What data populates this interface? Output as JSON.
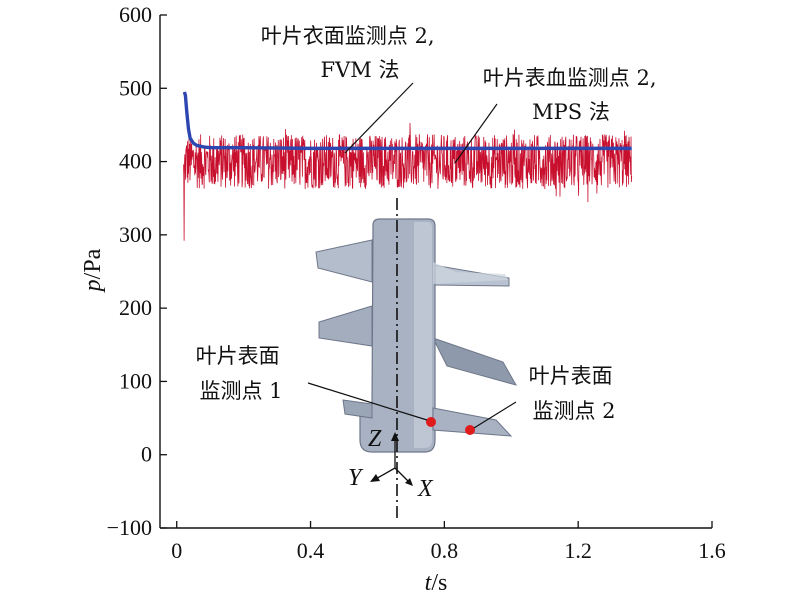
{
  "chart_data": {
    "type": "line",
    "x_axis": {
      "label_italic": "t",
      "label_unit": "/s",
      "range": [
        -0.05,
        1.6
      ],
      "ticks": [
        0,
        0.4,
        0.8,
        1.2,
        1.6
      ],
      "tick_labels": [
        "0",
        "0.4",
        "0.8",
        "1.2",
        "1.6"
      ]
    },
    "y_axis": {
      "label_italic": "p",
      "label_unit": "/Pa",
      "range": [
        -100,
        600
      ],
      "ticks": [
        -100,
        0,
        100,
        200,
        300,
        400,
        500,
        600
      ],
      "tick_labels": [
        "−100",
        "0",
        "100",
        "200",
        "300",
        "400",
        "500",
        "600"
      ]
    },
    "grid": false,
    "series": [
      {
        "color": "#2e47b0",
        "x": [
          0.023,
          0.026,
          0.03,
          0.035,
          0.04,
          0.05,
          0.06,
          0.08,
          0.1,
          0.2,
          0.4,
          0.6,
          0.8,
          1.0,
          1.2,
          1.36
        ],
        "y": [
          495,
          490,
          468,
          445,
          432,
          425,
          422,
          420,
          419,
          419,
          418,
          418,
          418,
          418,
          418,
          418
        ]
      },
      {
        "color": "#c8102e",
        "x_range": [
          0.02,
          1.36
        ],
        "mean": 400,
        "band": [
          360,
          435
        ],
        "initial_min": 292,
        "samples": 1300
      }
    ],
    "annotations": [
      {
        "lines": [
          "叶片衣面监测点 2,",
          "FVM 法"
        ]
      },
      {
        "lines": [
          "叶片表血监测点 2,",
          "MPS 法"
        ]
      },
      {
        "lines": [
          "叶片表面",
          "监测点 1"
        ]
      },
      {
        "lines": [
          "叶片表面",
          "监测点 2"
        ]
      }
    ],
    "inset": {
      "description": "blade model",
      "axis_labels": [
        "Z",
        "Y",
        "X"
      ],
      "marker_color": "#e01b1b",
      "body_color": "#a8b2c2"
    }
  }
}
